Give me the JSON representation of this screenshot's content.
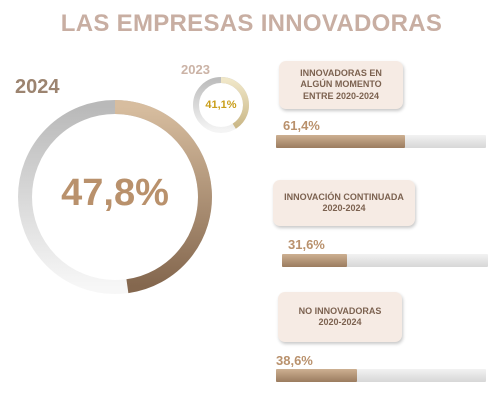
{
  "title": "LAS EMPRESAS INNOVADORAS",
  "colors": {
    "title": "#c8aea2",
    "accent_brown": "#b9916c",
    "dark_brown": "#8b6e55",
    "small_value": "#c99e1a",
    "track_gray": "#dcdcdc",
    "card_bg": "#f6ebe4"
  },
  "chart_data": [
    {
      "type": "pie",
      "variant": "donut",
      "label": "2024",
      "value": 47.8,
      "value_text": "47,8%",
      "unit": "%"
    },
    {
      "type": "pie",
      "variant": "donut",
      "label": "2023",
      "value": 41.1,
      "value_text": "41,1%",
      "unit": "%"
    },
    {
      "type": "bar",
      "orientation": "horizontal",
      "xlim": [
        0,
        100
      ],
      "categories": [
        "INNOVADORAS EN ALGÚN MOMENTO ENTRE 2020-2024",
        "INNOVACIÓN CONTINUADA 2020-2024",
        "NO INNOVADORAS 2020-2024"
      ],
      "values": [
        61.4,
        31.6,
        38.6
      ],
      "value_texts": [
        "61,4%",
        "31,6%",
        "38,6%"
      ]
    }
  ],
  "cards": [
    {
      "line1": "INNOVADORAS EN",
      "line2": "ALGÚN MOMENTO",
      "line3": "ENTRE 2020-2024"
    },
    {
      "line1": "INNOVACIÓN CONTINUADA",
      "line2": "2020-2024"
    },
    {
      "line1": "NO INNOVADORAS",
      "line2": "2020-2024"
    }
  ]
}
